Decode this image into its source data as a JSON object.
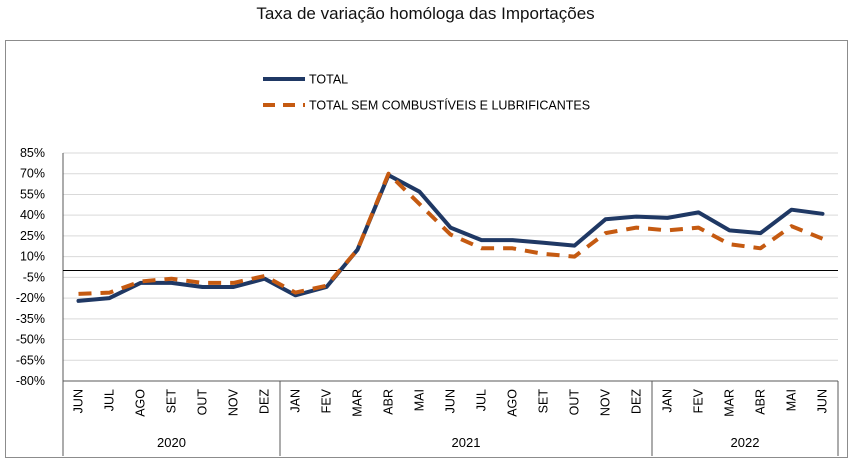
{
  "chart_data": {
    "type": "line",
    "title": "Taxa de variação homóloga das Importações",
    "xlabel": "",
    "ylabel": "",
    "ylim": [
      -80,
      85
    ],
    "yticks": [
      85,
      70,
      55,
      40,
      25,
      10,
      -5,
      -20,
      -35,
      -50,
      -65,
      -80
    ],
    "ytick_labels": [
      "85%",
      "70%",
      "55%",
      "40%",
      "25%",
      "10%",
      "-5%",
      "-20%",
      "-35%",
      "-50%",
      "-65%",
      "-80%"
    ],
    "categories": [
      "JUN",
      "JUL",
      "AGO",
      "SET",
      "OUT",
      "NOV",
      "DEZ",
      "JAN",
      "FEV",
      "MAR",
      "ABR",
      "MAI",
      "JUN",
      "JUL",
      "AGO",
      "SET",
      "OUT",
      "NOV",
      "DEZ",
      "JAN",
      "FEV",
      "MAR",
      "ABR",
      "MAI",
      "JUN"
    ],
    "groups": [
      {
        "label": "2020",
        "count": 7
      },
      {
        "label": "2021",
        "count": 12
      },
      {
        "label": "2022",
        "count": 6
      }
    ],
    "series": [
      {
        "name": "TOTAL",
        "color": "#1f3864",
        "style": "solid",
        "values": [
          -22,
          -20,
          -9,
          -9,
          -12,
          -12,
          -6,
          -18,
          -12,
          15,
          69,
          57,
          31,
          22,
          22,
          20,
          18,
          37,
          39,
          38,
          42,
          29,
          27,
          44,
          41
        ]
      },
      {
        "name": "TOTAL SEM COMBUSTÍVEIS E LUBRIFICANTES",
        "color": "#c55a11",
        "style": "dashed",
        "values": [
          -17,
          -16,
          -8,
          -6,
          -9,
          -9,
          -4,
          -16,
          -11,
          15,
          70,
          48,
          26,
          16,
          16,
          12,
          10,
          27,
          31,
          29,
          31,
          19,
          16,
          32,
          23
        ]
      }
    ],
    "zero_line": 0,
    "legend_position": "top-center",
    "grid": true
  }
}
